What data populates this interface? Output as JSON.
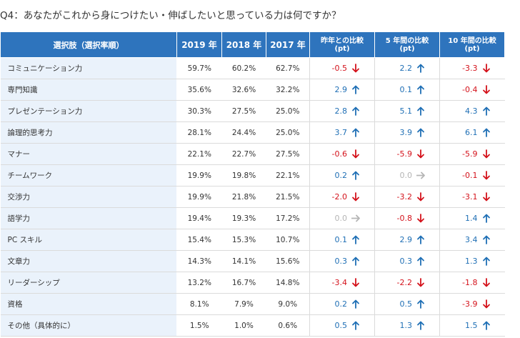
{
  "title": "Q4：あなたがこれから身につけたい・伸ばしたいと思っている力は何ですか？",
  "header": {
    "label": "選択肢（選択率順）",
    "y2019": "2019 年",
    "y2018": "2018 年",
    "y2017": "2017 年",
    "cmp1_line1": "昨年との比較",
    "cmp1_line2": "(pt)",
    "cmp5_line1": "5 年間の比較",
    "cmp5_line2": "(pt)",
    "cmp10_line1": "10 年間の比較",
    "cmp10_line2": "(pt)"
  },
  "colors": {
    "header_bg": "#2e74bd",
    "label_bg": "#eaf2fb",
    "up": "#1f6fb5",
    "down": "#d4121b",
    "flat": "#b5b5b5"
  },
  "arrow_icons": {
    "up": "arrow-up-icon",
    "down": "arrow-down-icon",
    "flat": "arrow-right-icon"
  },
  "rows": [
    {
      "label": "コミュニケーション力",
      "y2019": "59.7%",
      "y2018": "60.2%",
      "y2017": "62.7%",
      "cmp1": "-0.5",
      "cmp1_dir": "down",
      "cmp5": "2.2",
      "cmp5_dir": "up",
      "cmp10": "-3.3",
      "cmp10_dir": "down"
    },
    {
      "label": "専門知識",
      "y2019": "35.6%",
      "y2018": "32.6%",
      "y2017": "32.2%",
      "cmp1": "2.9",
      "cmp1_dir": "up",
      "cmp5": "0.1",
      "cmp5_dir": "up",
      "cmp10": "-0.4",
      "cmp10_dir": "down"
    },
    {
      "label": "プレゼンテーション力",
      "y2019": "30.3%",
      "y2018": "27.5%",
      "y2017": "25.0%",
      "cmp1": "2.8",
      "cmp1_dir": "up",
      "cmp5": "5.1",
      "cmp5_dir": "up",
      "cmp10": "4.3",
      "cmp10_dir": "up"
    },
    {
      "label": "論理的思考力",
      "y2019": "28.1%",
      "y2018": "24.4%",
      "y2017": "25.0%",
      "cmp1": "3.7",
      "cmp1_dir": "up",
      "cmp5": "3.9",
      "cmp5_dir": "up",
      "cmp10": "6.1",
      "cmp10_dir": "up"
    },
    {
      "label": "マナー",
      "y2019": "22.1%",
      "y2018": "22.7%",
      "y2017": "27.5%",
      "cmp1": "-0.6",
      "cmp1_dir": "down",
      "cmp5": "-5.9",
      "cmp5_dir": "down",
      "cmp10": "-5.9",
      "cmp10_dir": "down"
    },
    {
      "label": "チームワーク",
      "y2019": "19.9%",
      "y2018": "19.8%",
      "y2017": "22.1%",
      "cmp1": "0.2",
      "cmp1_dir": "up",
      "cmp5": "0.0",
      "cmp5_dir": "flat",
      "cmp10": "-0.1",
      "cmp10_dir": "down"
    },
    {
      "label": "交渉力",
      "y2019": "19.9%",
      "y2018": "21.8%",
      "y2017": "21.5%",
      "cmp1": "-2.0",
      "cmp1_dir": "down",
      "cmp5": "-3.2",
      "cmp5_dir": "down",
      "cmp10": "-3.1",
      "cmp10_dir": "down"
    },
    {
      "label": "語学力",
      "y2019": "19.4%",
      "y2018": "19.3%",
      "y2017": "17.2%",
      "cmp1": "0.0",
      "cmp1_dir": "flat",
      "cmp5": "-0.8",
      "cmp5_dir": "down",
      "cmp10": "1.4",
      "cmp10_dir": "up"
    },
    {
      "label": "PC スキル",
      "y2019": "15.4%",
      "y2018": "15.3%",
      "y2017": "10.7%",
      "cmp1": "0.1",
      "cmp1_dir": "up",
      "cmp5": "2.9",
      "cmp5_dir": "up",
      "cmp10": "3.4",
      "cmp10_dir": "up"
    },
    {
      "label": "文章力",
      "y2019": "14.3%",
      "y2018": "14.1%",
      "y2017": "15.6%",
      "cmp1": "0.3",
      "cmp1_dir": "up",
      "cmp5": "0.3",
      "cmp5_dir": "up",
      "cmp10": "1.3",
      "cmp10_dir": "up"
    },
    {
      "label": "リーダーシップ",
      "y2019": "13.2%",
      "y2018": "16.7%",
      "y2017": "14.8%",
      "cmp1": "-3.4",
      "cmp1_dir": "down",
      "cmp5": "-2.2",
      "cmp5_dir": "down",
      "cmp10": "-1.8",
      "cmp10_dir": "down"
    },
    {
      "label": "資格",
      "y2019": "8.1%",
      "y2018": "7.9%",
      "y2017": "9.0%",
      "cmp1": "0.2",
      "cmp1_dir": "up",
      "cmp5": "0.5",
      "cmp5_dir": "up",
      "cmp10": "-3.9",
      "cmp10_dir": "down"
    },
    {
      "label": "その他（具体的に）",
      "y2019": "1.5%",
      "y2018": "1.0%",
      "y2017": "0.6%",
      "cmp1": "0.5",
      "cmp1_dir": "up",
      "cmp5": "1.3",
      "cmp5_dir": "up",
      "cmp10": "1.5",
      "cmp10_dir": "up"
    }
  ]
}
